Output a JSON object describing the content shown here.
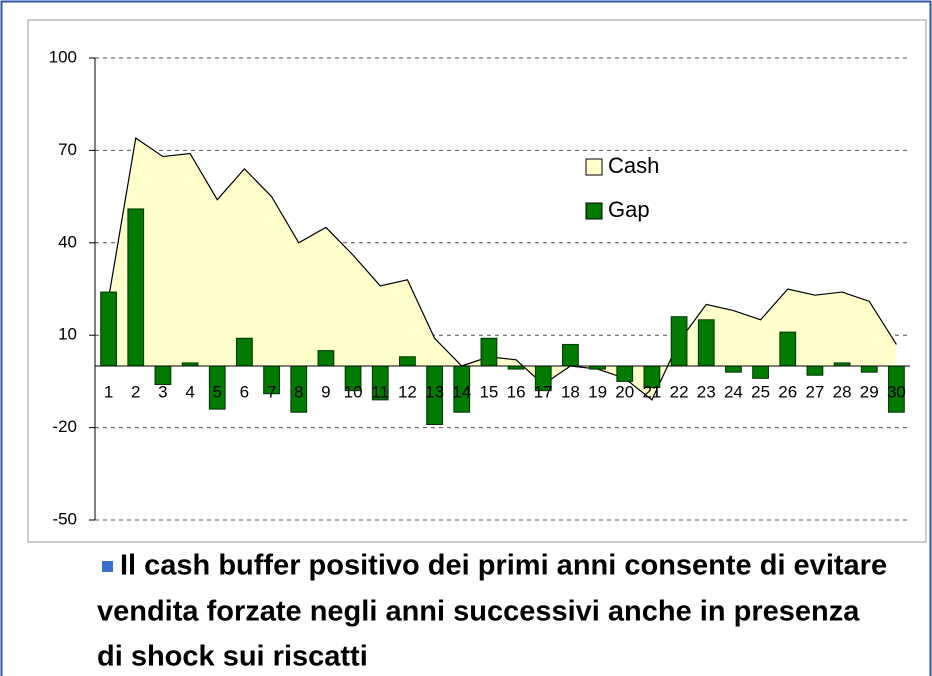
{
  "chart_data": {
    "type": "area_bar",
    "categories": [
      "1",
      "2",
      "3",
      "4",
      "5",
      "6",
      "7",
      "8",
      "9",
      "10",
      "11",
      "12",
      "13",
      "14",
      "15",
      "16",
      "17",
      "18",
      "19",
      "20",
      "21",
      "22",
      "23",
      "24",
      "25",
      "26",
      "27",
      "28",
      "29",
      "30"
    ],
    "series": [
      {
        "name": "Cash",
        "type": "area",
        "color": "#ffffcc",
        "values": [
          22,
          74,
          68,
          69,
          54,
          64,
          55,
          40,
          45,
          36,
          26,
          28,
          9,
          0,
          3,
          2,
          -6,
          0,
          -1,
          -4,
          -11,
          8,
          20,
          18,
          15,
          25,
          23,
          24,
          21,
          7
        ]
      },
      {
        "name": "Gap",
        "type": "bar",
        "color": "#007a00",
        "values": [
          24,
          51,
          -6,
          1,
          -14,
          9,
          -9,
          -15,
          5,
          -8,
          -11,
          3,
          -19,
          -15,
          9,
          -1,
          -8,
          7,
          -1,
          -5,
          -7,
          16,
          15,
          -2,
          -4,
          11,
          -3,
          1,
          -2,
          -15
        ]
      }
    ],
    "ylim": [
      -50,
      100
    ],
    "yticks": [
      -50,
      -20,
      10,
      40,
      70,
      100
    ],
    "grid": true,
    "legend": "upper right"
  },
  "caption": {
    "lines": [
      "Il cash buffer positivo dei primi anni consente di evitare",
      "vendita forzate negli anni successivi anche in presenza",
      "di shock sui riscatti"
    ]
  }
}
